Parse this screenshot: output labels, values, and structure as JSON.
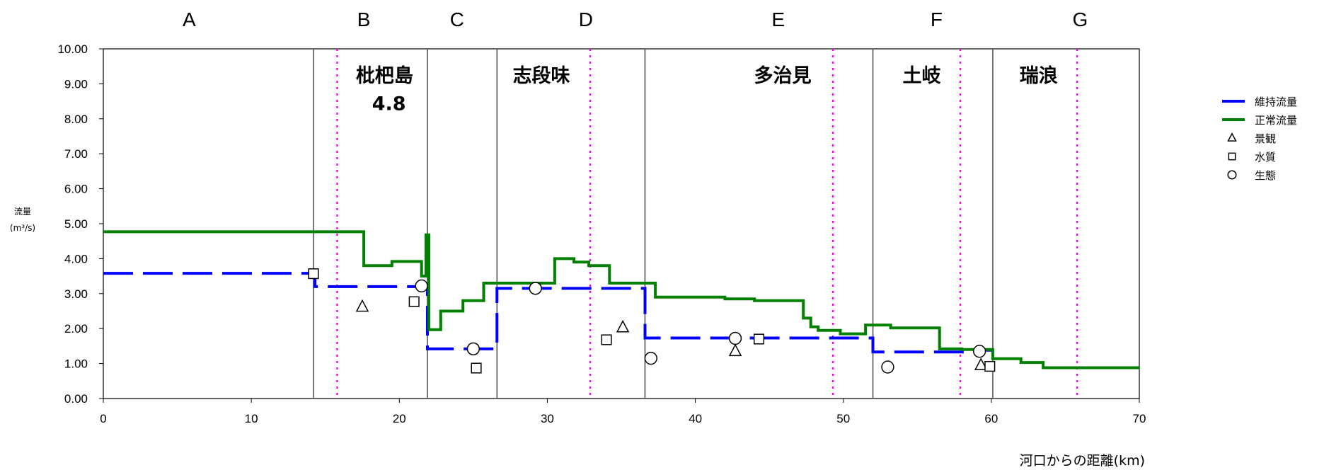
{
  "chart_data": {
    "type": "line",
    "xlabel": "河口からの距離(km)",
    "ylabel": "流量",
    "ylabel_unit": "(m³/s)",
    "xlim": [
      0,
      70
    ],
    "ylim": [
      0,
      10
    ],
    "x_ticks": [
      0,
      10,
      20,
      30,
      40,
      50,
      60,
      70
    ],
    "x_tick_labels": [
      "0",
      "10",
      "20",
      "30",
      "40",
      "50",
      "60",
      "70"
    ],
    "y_ticks": [
      0,
      1,
      2,
      3,
      4,
      5,
      6,
      7,
      8,
      9,
      10
    ],
    "y_tick_labels": [
      "0.00",
      "1.00",
      "2.00",
      "3.00",
      "4.00",
      "5.00",
      "6.00",
      "7.00",
      "8.00",
      "9.00",
      "10.00"
    ],
    "segment_boundaries": [
      14.2,
      21.9,
      26.6,
      36.6,
      52.0,
      60.1
    ],
    "location_markers": [
      15.8,
      32.9,
      49.3,
      57.9,
      65.8
    ],
    "segments": [
      {
        "label": "A",
        "x": 5.8
      },
      {
        "label": "B",
        "x": 17.6
      },
      {
        "label": "C",
        "x": 23.9
      },
      {
        "label": "D",
        "x": 32.6
      },
      {
        "label": "E",
        "x": 45.6
      },
      {
        "label": "F",
        "x": 56.3
      },
      {
        "label": "G",
        "x": 66.0
      }
    ],
    "locations": [
      {
        "label": "枇杷島",
        "x": 19.0,
        "y": 9.25
      },
      {
        "label": "4.8",
        "x": 19.3,
        "y": 8.45
      },
      {
        "label": "志段味",
        "x": 29.6,
        "y": 9.25
      },
      {
        "label": "多治見",
        "x": 45.9,
        "y": 9.25
      },
      {
        "label": "土岐",
        "x": 55.3,
        "y": 9.25
      },
      {
        "label": "瑞浪",
        "x": 63.2,
        "y": 9.25
      }
    ],
    "series": [
      {
        "name": "維持流量",
        "color": "#0000ff",
        "style": "dashed",
        "points": [
          [
            0,
            3.58
          ],
          [
            14.3,
            3.58
          ],
          [
            14.3,
            3.2
          ],
          [
            21.9,
            3.2
          ],
          [
            21.9,
            1.42
          ],
          [
            26.6,
            1.42
          ],
          [
            26.6,
            3.15
          ],
          [
            36.6,
            3.15
          ],
          [
            36.6,
            1.73
          ],
          [
            52.0,
            1.73
          ],
          [
            52.0,
            1.33
          ],
          [
            59.3,
            1.33
          ],
          [
            59.3,
            1.38
          ],
          [
            60.1,
            1.38
          ]
        ]
      },
      {
        "name": "正常流量",
        "color": "#008000",
        "style": "solid",
        "points": [
          [
            0,
            4.77
          ],
          [
            17.6,
            4.77
          ],
          [
            17.6,
            3.8
          ],
          [
            19.5,
            3.8
          ],
          [
            19.5,
            3.92
          ],
          [
            21.5,
            3.92
          ],
          [
            21.5,
            3.5
          ],
          [
            21.8,
            3.5
          ],
          [
            21.8,
            4.68
          ],
          [
            22.0,
            4.68
          ],
          [
            22.0,
            1.97
          ],
          [
            22.8,
            1.97
          ],
          [
            22.8,
            2.5
          ],
          [
            24.3,
            2.5
          ],
          [
            24.3,
            2.8
          ],
          [
            25.7,
            2.8
          ],
          [
            25.7,
            3.3
          ],
          [
            30.5,
            3.3
          ],
          [
            30.5,
            4.0
          ],
          [
            31.8,
            4.0
          ],
          [
            31.8,
            3.9
          ],
          [
            32.8,
            3.9
          ],
          [
            32.8,
            3.8
          ],
          [
            34.2,
            3.8
          ],
          [
            34.2,
            3.3
          ],
          [
            37.3,
            3.3
          ],
          [
            37.3,
            2.9
          ],
          [
            40.0,
            2.9
          ],
          [
            42.0,
            2.9
          ],
          [
            42.0,
            2.85
          ],
          [
            44.0,
            2.85
          ],
          [
            44.0,
            2.8
          ],
          [
            47.3,
            2.8
          ],
          [
            47.3,
            2.3
          ],
          [
            47.8,
            2.3
          ],
          [
            47.8,
            2.05
          ],
          [
            48.3,
            2.05
          ],
          [
            48.3,
            1.95
          ],
          [
            49.8,
            1.95
          ],
          [
            49.8,
            1.85
          ],
          [
            51.5,
            1.85
          ],
          [
            51.5,
            2.1
          ],
          [
            53.2,
            2.1
          ],
          [
            53.2,
            2.02
          ],
          [
            56.5,
            2.02
          ],
          [
            56.5,
            1.42
          ],
          [
            58.0,
            1.42
          ],
          [
            58.0,
            1.4
          ],
          [
            60.1,
            1.4
          ],
          [
            60.1,
            1.14
          ],
          [
            62.0,
            1.14
          ],
          [
            62.0,
            1.03
          ],
          [
            63.5,
            1.03
          ],
          [
            63.5,
            0.88
          ],
          [
            70,
            0.88
          ]
        ]
      },
      {
        "name": "景観",
        "marker": "triangle",
        "points": [
          [
            17.5,
            2.62
          ],
          [
            35.1,
            2.03
          ],
          [
            42.7,
            1.35
          ],
          [
            59.3,
            0.95
          ]
        ]
      },
      {
        "name": "水質",
        "marker": "square",
        "points": [
          [
            14.2,
            3.57
          ],
          [
            21.0,
            2.77
          ],
          [
            25.2,
            0.87
          ],
          [
            34.0,
            1.68
          ],
          [
            44.3,
            1.7
          ],
          [
            59.9,
            0.92
          ]
        ]
      },
      {
        "name": "生態",
        "marker": "circle",
        "points": [
          [
            21.5,
            3.22
          ],
          [
            25.0,
            1.42
          ],
          [
            29.2,
            3.15
          ],
          [
            37.0,
            1.15
          ],
          [
            42.7,
            1.72
          ],
          [
            53.0,
            0.9
          ],
          [
            59.2,
            1.35
          ]
        ]
      }
    ],
    "legend": {
      "placement": "right"
    }
  }
}
